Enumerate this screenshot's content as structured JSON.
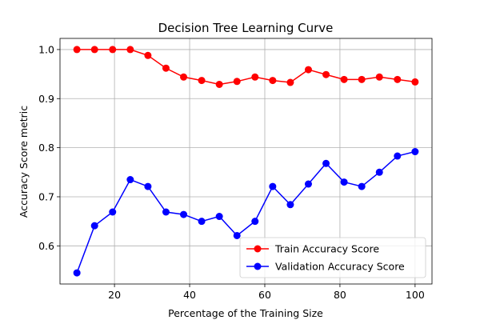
{
  "chart_data": {
    "type": "line",
    "title": "Decision Tree Learning Curve",
    "xlabel": "Percentage of the Training Size",
    "ylabel": "Accuracy Score metric",
    "x": [
      10,
      14.7,
      19.5,
      24.2,
      28.9,
      33.7,
      38.4,
      43.2,
      47.9,
      52.6,
      57.4,
      62.1,
      66.8,
      71.6,
      76.3,
      81.1,
      85.8,
      90.5,
      95.3,
      100
    ],
    "series": [
      {
        "name": "Train Accuracy Score",
        "color": "#ff0000",
        "values": [
          1.0,
          1.0,
          1.0,
          1.0,
          0.988,
          0.962,
          0.944,
          0.937,
          0.929,
          0.935,
          0.944,
          0.937,
          0.933,
          0.959,
          0.949,
          0.939,
          0.939,
          0.944,
          0.939,
          0.934
        ]
      },
      {
        "name": "Validation Accuracy Score",
        "color": "#0000ff",
        "values": [
          0.545,
          0.641,
          0.669,
          0.735,
          0.721,
          0.669,
          0.664,
          0.65,
          0.66,
          0.621,
          0.65,
          0.721,
          0.684,
          0.726,
          0.768,
          0.73,
          0.721,
          0.75,
          0.783,
          0.792
        ]
      }
    ],
    "xticks": [
      20,
      40,
      60,
      80,
      100
    ],
    "yticks": [
      0.6,
      0.7,
      0.8,
      0.9,
      1.0
    ],
    "xlim": [
      5.5,
      104.5
    ],
    "ylim": [
      0.5223,
      1.0227
    ],
    "grid": true,
    "legend_position": "lower-right"
  }
}
